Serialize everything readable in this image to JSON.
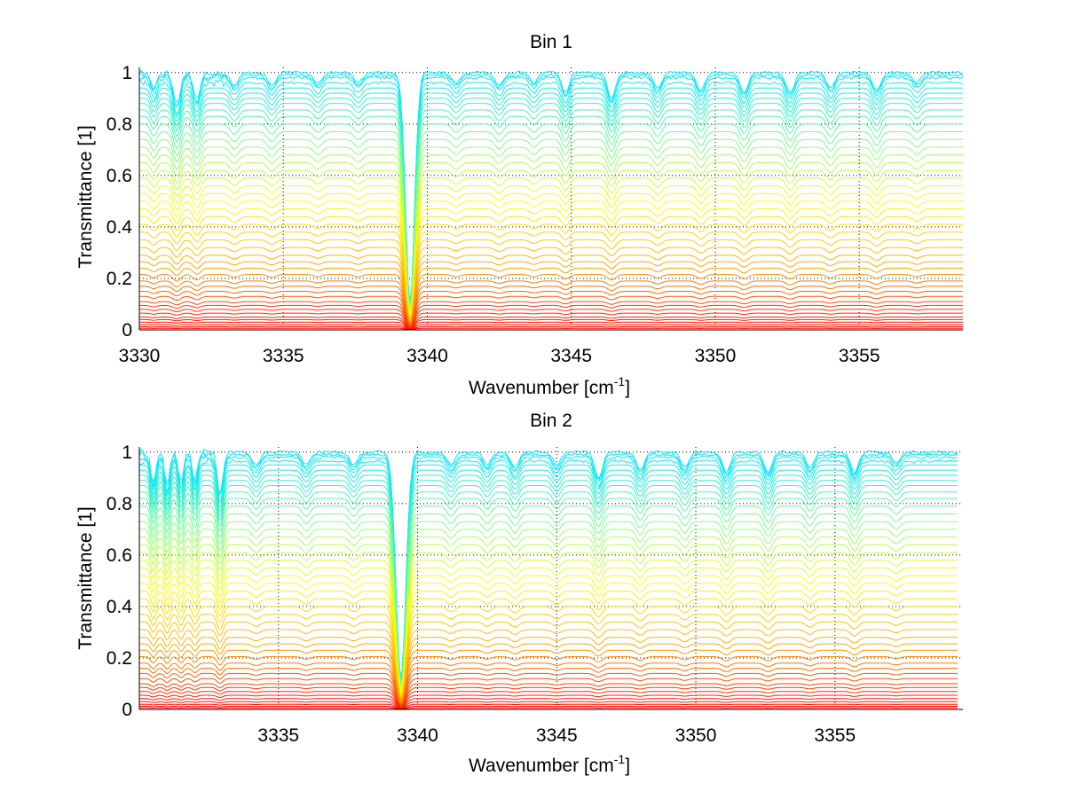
{
  "chart_data": [
    {
      "type": "line",
      "title": "Bin 1",
      "xlabel": "Wavenumber [cm",
      "xlabel_sup": "-1",
      "xlabel_suffix": "]",
      "ylabel": "Transmittance [1]",
      "xlim": [
        3330,
        3358.6
      ],
      "ylim": [
        0,
        1.02
      ],
      "xticks": [
        3330,
        3335,
        3340,
        3345,
        3350,
        3355
      ],
      "xtick_labels": [
        "3330",
        "3335",
        "3340",
        "3345",
        "3350",
        "3355"
      ],
      "yticks": [
        0,
        0.2,
        0.4,
        0.6,
        0.8,
        1
      ],
      "ytick_labels": [
        "0",
        "0.2",
        "0.4",
        "0.6",
        "0.8",
        "1"
      ],
      "grid": "dotted",
      "colormap": [
        "#00e5ff",
        "#7dff8a",
        "#ffff00",
        "#ffa500",
        "#ff0000"
      ],
      "series_levels": [
        1.0,
        0.99,
        0.98,
        0.96,
        0.94,
        0.92,
        0.9,
        0.88,
        0.855,
        0.83,
        0.8,
        0.77,
        0.74,
        0.71,
        0.68,
        0.65,
        0.62,
        0.59,
        0.56,
        0.53,
        0.5,
        0.47,
        0.44,
        0.41,
        0.38,
        0.35,
        0.32,
        0.29,
        0.265,
        0.24,
        0.215,
        0.19,
        0.17,
        0.15,
        0.13,
        0.11,
        0.095,
        0.08,
        0.065,
        0.05,
        0.04,
        0.03,
        0.02,
        0.012,
        0.006
      ],
      "absorption_lines": [
        {
          "x": 3330.5,
          "depth": 0.06,
          "width": 0.15
        },
        {
          "x": 3331.3,
          "depth": 0.12,
          "width": 0.18
        },
        {
          "x": 3332.0,
          "depth": 0.1,
          "width": 0.18
        },
        {
          "x": 3333.3,
          "depth": 0.05,
          "width": 0.2
        },
        {
          "x": 3334.6,
          "depth": 0.05,
          "width": 0.2
        },
        {
          "x": 3336.2,
          "depth": 0.04,
          "width": 0.2
        },
        {
          "x": 3337.6,
          "depth": 0.04,
          "width": 0.2
        },
        {
          "x": 3339.4,
          "depth": 0.9,
          "width": 0.22
        },
        {
          "x": 3341.0,
          "depth": 0.04,
          "width": 0.2
        },
        {
          "x": 3342.5,
          "depth": 0.05,
          "width": 0.2
        },
        {
          "x": 3343.7,
          "depth": 0.04,
          "width": 0.2
        },
        {
          "x": 3344.8,
          "depth": 0.08,
          "width": 0.18
        },
        {
          "x": 3346.4,
          "depth": 0.1,
          "width": 0.2
        },
        {
          "x": 3348.0,
          "depth": 0.06,
          "width": 0.2
        },
        {
          "x": 3349.5,
          "depth": 0.07,
          "width": 0.2
        },
        {
          "x": 3351.0,
          "depth": 0.08,
          "width": 0.2
        },
        {
          "x": 3352.6,
          "depth": 0.08,
          "width": 0.2
        },
        {
          "x": 3354.0,
          "depth": 0.06,
          "width": 0.2
        },
        {
          "x": 3355.6,
          "depth": 0.07,
          "width": 0.2
        },
        {
          "x": 3357.0,
          "depth": 0.04,
          "width": 0.2
        }
      ]
    },
    {
      "type": "line",
      "title": "Bin 2",
      "xlabel": "Wavenumber [cm",
      "xlabel_sup": "-1",
      "xlabel_suffix": "]",
      "ylabel": "Transmittance [1]",
      "xlim": [
        3330,
        3359.6
      ],
      "ylim": [
        0,
        1.02
      ],
      "xticks": [
        3335,
        3340,
        3345,
        3350,
        3355
      ],
      "xtick_labels": [
        "3335",
        "3340",
        "3345",
        "3350",
        "3355"
      ],
      "yticks": [
        0,
        0.2,
        0.4,
        0.6,
        0.8,
        1
      ],
      "ytick_labels": [
        "0",
        "0.2",
        "0.4",
        "0.6",
        "0.8",
        "1"
      ],
      "grid": "dotted",
      "colormap": [
        "#00e5ff",
        "#7dff8a",
        "#ffff00",
        "#ffa500",
        "#ff0000"
      ],
      "series_levels": [
        1.0,
        0.99,
        0.98,
        0.965,
        0.95,
        0.93,
        0.91,
        0.89,
        0.87,
        0.845,
        0.82,
        0.79,
        0.76,
        0.73,
        0.7,
        0.67,
        0.64,
        0.61,
        0.58,
        0.55,
        0.52,
        0.49,
        0.46,
        0.43,
        0.4,
        0.37,
        0.34,
        0.31,
        0.28,
        0.255,
        0.23,
        0.205,
        0.18,
        0.16,
        0.14,
        0.12,
        0.1,
        0.085,
        0.07,
        0.055,
        0.042,
        0.03,
        0.02,
        0.012,
        0.006
      ],
      "absorption_lines": [
        {
          "x": 3330.5,
          "depth": 0.12,
          "width": 0.13
        },
        {
          "x": 3331.0,
          "depth": 0.13,
          "width": 0.13
        },
        {
          "x": 3331.5,
          "depth": 0.12,
          "width": 0.13
        },
        {
          "x": 3332.0,
          "depth": 0.11,
          "width": 0.13
        },
        {
          "x": 3332.9,
          "depth": 0.16,
          "width": 0.15
        },
        {
          "x": 3334.2,
          "depth": 0.05,
          "width": 0.2
        },
        {
          "x": 3336.0,
          "depth": 0.05,
          "width": 0.2
        },
        {
          "x": 3337.7,
          "depth": 0.05,
          "width": 0.2
        },
        {
          "x": 3339.4,
          "depth": 0.88,
          "width": 0.25
        },
        {
          "x": 3341.2,
          "depth": 0.05,
          "width": 0.2
        },
        {
          "x": 3342.5,
          "depth": 0.05,
          "width": 0.2
        },
        {
          "x": 3343.5,
          "depth": 0.06,
          "width": 0.2
        },
        {
          "x": 3345.0,
          "depth": 0.05,
          "width": 0.2
        },
        {
          "x": 3346.5,
          "depth": 0.1,
          "width": 0.2
        },
        {
          "x": 3348.0,
          "depth": 0.07,
          "width": 0.2
        },
        {
          "x": 3349.6,
          "depth": 0.06,
          "width": 0.2
        },
        {
          "x": 3351.1,
          "depth": 0.08,
          "width": 0.2
        },
        {
          "x": 3352.6,
          "depth": 0.08,
          "width": 0.2
        },
        {
          "x": 3354.1,
          "depth": 0.06,
          "width": 0.2
        },
        {
          "x": 3355.7,
          "depth": 0.08,
          "width": 0.2
        },
        {
          "x": 3357.2,
          "depth": 0.04,
          "width": 0.2
        }
      ]
    }
  ]
}
